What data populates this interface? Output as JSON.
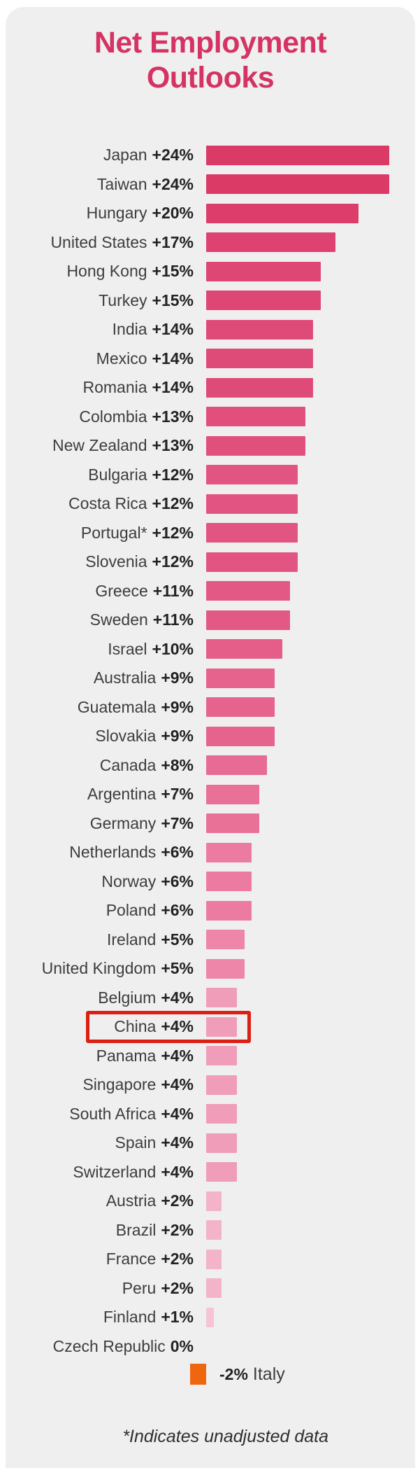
{
  "title": {
    "line1": "Net Employment",
    "line2": "Outlooks"
  },
  "chart_data": {
    "type": "bar",
    "orientation": "horizontal",
    "unit": "%",
    "title": "Net Employment Outlooks",
    "xlim": [
      0,
      24
    ],
    "grid": false,
    "categories": [
      "Japan",
      "Taiwan",
      "Hungary",
      "United States",
      "Hong Kong",
      "Turkey",
      "India",
      "Mexico",
      "Romania",
      "Colombia",
      "New Zealand",
      "Bulgaria",
      "Costa Rica",
      "Portugal*",
      "Slovenia",
      "Greece",
      "Sweden",
      "Israel",
      "Australia",
      "Guatemala",
      "Slovakia",
      "Canada",
      "Argentina",
      "Germany",
      "Netherlands",
      "Norway",
      "Poland",
      "Ireland",
      "United Kingdom",
      "Belgium",
      "China",
      "Panama",
      "Singapore",
      "South Africa",
      "Spain",
      "Switzerland",
      "Austria",
      "Brazil",
      "France",
      "Peru",
      "Finland",
      "Czech Republic",
      "Italy"
    ],
    "values": [
      24,
      24,
      20,
      17,
      15,
      15,
      14,
      14,
      14,
      13,
      13,
      12,
      12,
      12,
      12,
      11,
      11,
      10,
      9,
      9,
      9,
      8,
      7,
      7,
      6,
      6,
      6,
      5,
      5,
      4,
      4,
      4,
      4,
      4,
      4,
      4,
      2,
      2,
      2,
      2,
      1,
      0,
      -2
    ],
    "highlighted_category": "China",
    "rows": [
      {
        "country": "Japan",
        "label": "+24%",
        "pct": 24
      },
      {
        "country": "Taiwan",
        "label": "+24%",
        "pct": 24
      },
      {
        "country": "Hungary",
        "label": "+20%",
        "pct": 20
      },
      {
        "country": "United States",
        "label": "+17%",
        "pct": 17
      },
      {
        "country": "Hong Kong",
        "label": "+15%",
        "pct": 15
      },
      {
        "country": "Turkey",
        "label": "+15%",
        "pct": 15
      },
      {
        "country": "India",
        "label": "+14%",
        "pct": 14
      },
      {
        "country": "Mexico",
        "label": "+14%",
        "pct": 14
      },
      {
        "country": "Romania",
        "label": "+14%",
        "pct": 14
      },
      {
        "country": "Colombia",
        "label": "+13%",
        "pct": 13
      },
      {
        "country": "New Zealand",
        "label": "+13%",
        "pct": 13
      },
      {
        "country": "Bulgaria",
        "label": "+12%",
        "pct": 12
      },
      {
        "country": "Costa Rica",
        "label": "+12%",
        "pct": 12
      },
      {
        "country": "Portugal*",
        "label": "+12%",
        "pct": 12
      },
      {
        "country": "Slovenia",
        "label": "+12%",
        "pct": 12
      },
      {
        "country": "Greece",
        "label": "+11%",
        "pct": 11
      },
      {
        "country": "Sweden",
        "label": "+11%",
        "pct": 11
      },
      {
        "country": "Israel",
        "label": "+10%",
        "pct": 10
      },
      {
        "country": "Australia",
        "label": "+9%",
        "pct": 9
      },
      {
        "country": "Guatemala",
        "label": "+9%",
        "pct": 9
      },
      {
        "country": "Slovakia",
        "label": "+9%",
        "pct": 9
      },
      {
        "country": "Canada",
        "label": "+8%",
        "pct": 8
      },
      {
        "country": "Argentina",
        "label": "+7%",
        "pct": 7
      },
      {
        "country": "Germany",
        "label": "+7%",
        "pct": 7
      },
      {
        "country": "Netherlands",
        "label": "+6%",
        "pct": 6
      },
      {
        "country": "Norway",
        "label": "+6%",
        "pct": 6
      },
      {
        "country": "Poland",
        "label": "+6%",
        "pct": 6
      },
      {
        "country": "Ireland",
        "label": "+5%",
        "pct": 5
      },
      {
        "country": "United Kingdom",
        "label": "+5%",
        "pct": 5
      },
      {
        "country": "Belgium",
        "label": "+4%",
        "pct": 4
      },
      {
        "country": "China",
        "label": "+4%",
        "pct": 4,
        "highlighted": true
      },
      {
        "country": "Panama",
        "label": "+4%",
        "pct": 4
      },
      {
        "country": "Singapore",
        "label": "+4%",
        "pct": 4
      },
      {
        "country": "South Africa",
        "label": "+4%",
        "pct": 4
      },
      {
        "country": "Spain",
        "label": "+4%",
        "pct": 4
      },
      {
        "country": "Switzerland",
        "label": "+4%",
        "pct": 4
      },
      {
        "country": "Austria",
        "label": "+2%",
        "pct": 2
      },
      {
        "country": "Brazil",
        "label": "+2%",
        "pct": 2
      },
      {
        "country": "France",
        "label": "+2%",
        "pct": 2
      },
      {
        "country": "Peru",
        "label": "+2%",
        "pct": 2
      },
      {
        "country": "Finland",
        "label": "+1%",
        "pct": 1
      },
      {
        "country": "Czech Republic",
        "label": "0%",
        "pct": 0
      }
    ],
    "negative_row": {
      "country": "Italy",
      "label": "-2%",
      "pct": -2
    }
  },
  "style": {
    "background": "#F0EFEF",
    "title_color": "#D43363",
    "highlight_color": "#DC1F14",
    "negative_color": "#EE660D",
    "bar_colors": {
      "24": "#DB3966",
      "20": "#DC3D6B",
      "17": "#DD4270",
      "15": "#DE4674",
      "14": "#DF4B78",
      "13": "#E1507D",
      "12": "#E25481",
      "11": "#E35985",
      "10": "#E45E89",
      "9": "#E6638D",
      "8": "#E76B94",
      "7": "#E97198",
      "6": "#EB7BA1",
      "5": "#ED86A9",
      "4": "#F09DBA",
      "2": "#F3B3C9",
      "1": "#F6C5D5"
    }
  },
  "footnote": "*Indicates unadjusted data"
}
